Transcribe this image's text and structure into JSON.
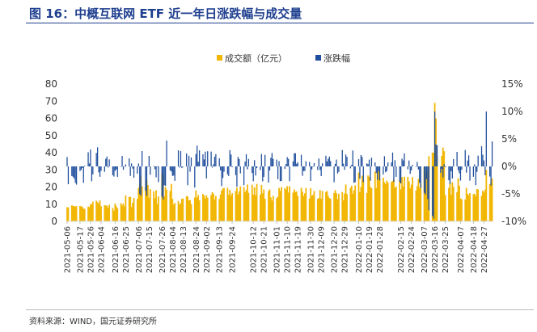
{
  "figure": {
    "title": "图 16：中概互联网 ETF 近一年日涨跌幅与成交量",
    "source": "资料来源：WIND，国元证券研究所"
  },
  "chart_data": {
    "type": "bar",
    "colors": {
      "volume": "#f2b705",
      "change": "#1f4e9c",
      "title": "#1f3f8f"
    },
    "legend_position": "top-center",
    "grid": false,
    "series": [
      {
        "name": "成交额（亿元）",
        "axis": "left",
        "unit": "亿元"
      },
      {
        "name": "涨跌幅",
        "axis": "right",
        "unit": "%"
      }
    ],
    "y_left": {
      "ticks": [
        "0",
        "10",
        "20",
        "30",
        "40",
        "50",
        "60",
        "70",
        "80"
      ],
      "min": 0,
      "max": 80
    },
    "y_right": {
      "ticks": [
        "15%",
        "10%",
        "5%",
        "0%",
        "-5%",
        "-10%"
      ],
      "min": -10,
      "max": 15
    },
    "x_ticks": [
      "2021-05-06",
      "2021-05-17",
      "2021-05-26",
      "2021-06-04",
      "2021-06-16",
      "2021-06-25",
      "2021-07-06",
      "2021-07-15",
      "2021-07-26",
      "2021-08-04",
      "2021-08-13",
      "2021-08-24",
      "2021-09-02",
      "2021-09-13",
      "2021-09-24",
      "2021-10-12",
      "2021-10-21",
      "2021-11-01",
      "2021-11-10",
      "2021-11-19",
      "2021-11-30",
      "2021-12-09",
      "2021-12-20",
      "2021-12-29",
      "2022-01-10",
      "2022-01-19",
      "2022-01-28",
      "2022-02-15",
      "2022-02-24",
      "2022-03-07",
      "2022-03-16",
      "2022-03-25",
      "2022-04-07",
      "2022-04-18",
      "2022-04-27"
    ],
    "segments": [
      {
        "from": "2021-05-06",
        "to": "2021-05-17",
        "volume": [
          8,
          10
        ],
        "change": [
          -4,
          2
        ]
      },
      {
        "from": "2021-05-17",
        "to": "2021-05-26",
        "volume": [
          7,
          9
        ],
        "change": [
          -3,
          3
        ]
      },
      {
        "from": "2021-05-26",
        "to": "2021-06-04",
        "volume": [
          8,
          13
        ],
        "change": [
          -3,
          4
        ]
      },
      {
        "from": "2021-06-04",
        "to": "2021-06-16",
        "volume": [
          6,
          10
        ],
        "change": [
          -2,
          2
        ]
      },
      {
        "from": "2021-06-16",
        "to": "2021-06-25",
        "volume": [
          7,
          12
        ],
        "change": [
          -2,
          2
        ]
      },
      {
        "from": "2021-06-25",
        "to": "2021-07-06",
        "volume": [
          8,
          16
        ],
        "change": [
          -3,
          3
        ]
      },
      {
        "from": "2021-07-06",
        "to": "2021-07-15",
        "volume": [
          14,
          28
        ],
        "change": [
          -6,
          4
        ]
      },
      {
        "from": "2021-07-15",
        "to": "2021-07-26",
        "volume": [
          10,
          20
        ],
        "change": [
          -4,
          3
        ]
      },
      {
        "from": "2021-07-26",
        "to": "2021-08-04",
        "volume": [
          12,
          22
        ],
        "change": [
          -6,
          5
        ]
      },
      {
        "from": "2021-08-04",
        "to": "2021-08-13",
        "volume": [
          9,
          15
        ],
        "change": [
          -3,
          3
        ]
      },
      {
        "from": "2021-08-13",
        "to": "2021-08-24",
        "volume": [
          10,
          16
        ],
        "change": [
          -4,
          4
        ]
      },
      {
        "from": "2021-08-24",
        "to": "2021-09-02",
        "volume": [
          12,
          18
        ],
        "change": [
          -3,
          4
        ]
      },
      {
        "from": "2021-09-02",
        "to": "2021-09-13",
        "volume": [
          11,
          18
        ],
        "change": [
          -4,
          4
        ]
      },
      {
        "from": "2021-09-13",
        "to": "2021-09-24",
        "volume": [
          13,
          20
        ],
        "change": [
          -4,
          3
        ]
      },
      {
        "from": "2021-09-24",
        "to": "2021-10-12",
        "volume": [
          13,
          22
        ],
        "change": [
          -4,
          3
        ]
      },
      {
        "from": "2021-10-12",
        "to": "2021-10-21",
        "volume": [
          14,
          22
        ],
        "change": [
          -3,
          3
        ]
      },
      {
        "from": "2021-10-21",
        "to": "2021-11-01",
        "volume": [
          12,
          19
        ],
        "change": [
          -3,
          3
        ]
      },
      {
        "from": "2021-11-01",
        "to": "2021-11-10",
        "volume": [
          13,
          20
        ],
        "change": [
          -3,
          3
        ]
      },
      {
        "from": "2021-11-10",
        "to": "2021-11-19",
        "volume": [
          14,
          22
        ],
        "change": [
          -3,
          3
        ]
      },
      {
        "from": "2021-11-19",
        "to": "2021-11-30",
        "volume": [
          12,
          20
        ],
        "change": [
          -3,
          3
        ]
      },
      {
        "from": "2021-11-30",
        "to": "2021-12-09",
        "volume": [
          12,
          20
        ],
        "change": [
          -3,
          3
        ]
      },
      {
        "from": "2021-12-09",
        "to": "2021-12-20",
        "volume": [
          13,
          20
        ],
        "change": [
          -3,
          2
        ]
      },
      {
        "from": "2021-12-20",
        "to": "2021-12-29",
        "volume": [
          11,
          19
        ],
        "change": [
          -3,
          3
        ]
      },
      {
        "from": "2021-12-29",
        "to": "2022-01-10",
        "volume": [
          15,
          22
        ],
        "change": [
          -3,
          4
        ]
      },
      {
        "from": "2022-01-10",
        "to": "2022-01-19",
        "volume": [
          16,
          30
        ],
        "change": [
          -5,
          3
        ]
      },
      {
        "from": "2022-01-19",
        "to": "2022-01-28",
        "volume": [
          18,
          30
        ],
        "change": [
          -3,
          3
        ]
      },
      {
        "from": "2022-01-28",
        "to": "2022-02-15",
        "volume": [
          18,
          26
        ],
        "change": [
          -3,
          3
        ]
      },
      {
        "from": "2022-02-15",
        "to": "2022-02-24",
        "volume": [
          16,
          26
        ],
        "change": [
          -4,
          3
        ]
      },
      {
        "from": "2022-02-24",
        "to": "2022-03-07",
        "volume": [
          18,
          30
        ],
        "change": [
          -4,
          3
        ]
      },
      {
        "from": "2022-03-07",
        "to": "2022-03-16",
        "volume": [
          22,
          38
        ],
        "change": [
          -7,
          4
        ]
      },
      {
        "from": "2022-03-16",
        "to": "2022-03-25",
        "volume": [
          26,
          45
        ],
        "change": [
          -6,
          6
        ]
      },
      {
        "from": "2022-03-25",
        "to": "2022-04-07",
        "volume": [
          14,
          26
        ],
        "change": [
          -4,
          3
        ]
      },
      {
        "from": "2022-04-07",
        "to": "2022-04-18",
        "volume": [
          12,
          20
        ],
        "change": [
          -3,
          3
        ]
      },
      {
        "from": "2022-04-18",
        "to": "2022-04-27",
        "volume": [
          12,
          22
        ],
        "change": [
          -4,
          4
        ]
      },
      {
        "from": "2022-04-27",
        "to": "2022-05-05",
        "volume": [
          15,
          26
        ],
        "change": [
          -6,
          5
        ]
      }
    ],
    "highlights": [
      {
        "date": "2021-07-26",
        "volume": 28,
        "change": -5.5
      },
      {
        "date": "2021-07-27",
        "volume": 26,
        "change": -6.0
      },
      {
        "date": "2022-03-11",
        "volume": 38,
        "change": -8.0
      },
      {
        "date": "2022-03-14",
        "volume": 40,
        "change": -9.0
      },
      {
        "date": "2022-03-15",
        "volume": 40,
        "change": -9.5
      },
      {
        "date": "2022-03-16",
        "volume": 69,
        "change": 10.0
      },
      {
        "date": "2022-03-17",
        "volume": 60,
        "change": 4.0
      },
      {
        "date": "2022-04-29",
        "volume": 30,
        "change": 10.0
      }
    ]
  }
}
